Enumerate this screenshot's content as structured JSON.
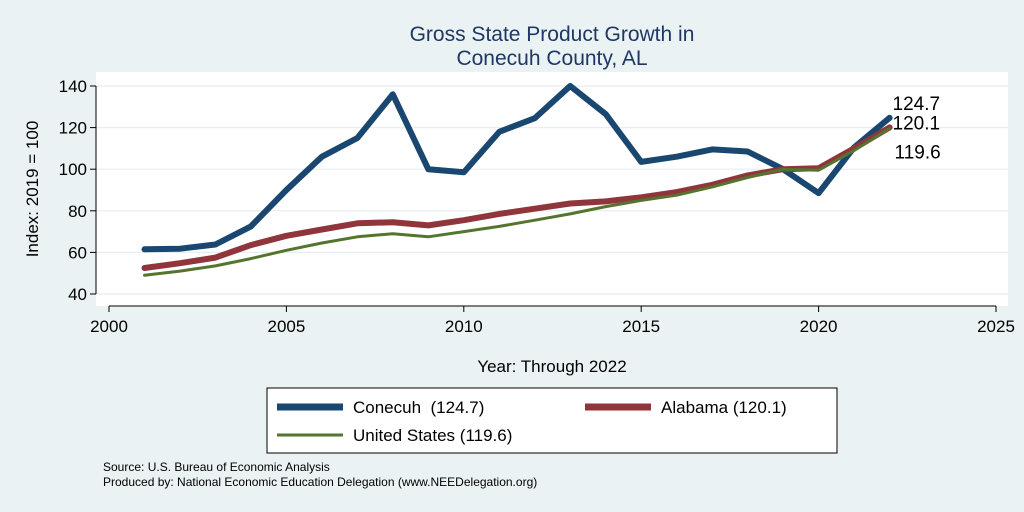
{
  "chart_data": {
    "type": "line",
    "title": "Gross State Product Growth in",
    "subtitle": "Conecuh County, AL",
    "xlabel": "Year: Through 2022",
    "ylabel": "Index: 2019 = 100",
    "xlim": [
      2000,
      2025
    ],
    "ylim": [
      40,
      140
    ],
    "xticks": [
      2000,
      2005,
      2010,
      2015,
      2020,
      2025
    ],
    "yticks": [
      40,
      60,
      80,
      100,
      120,
      140
    ],
    "grid": true,
    "x": [
      2001,
      2002,
      2003,
      2004,
      2005,
      2006,
      2007,
      2008,
      2009,
      2010,
      2011,
      2012,
      2013,
      2014,
      2015,
      2016,
      2017,
      2018,
      2019,
      2020,
      2021,
      2022
    ],
    "series": [
      {
        "name": "Conecuh",
        "color": "#1a476f",
        "end_label": "124.7",
        "legend_label": "Conecuh  (124.7)",
        "values": [
          61.5,
          61.8,
          63.8,
          72.5,
          90,
          106,
          115,
          136,
          100,
          98.5,
          118,
          124.5,
          140,
          126.5,
          103.5,
          106,
          109.5,
          108.5,
          100,
          88.5,
          110.5,
          124.7
        ]
      },
      {
        "name": "Alabama",
        "color": "#90353b",
        "end_label": "120.1",
        "legend_label": "Alabama (120.1)",
        "values": [
          52.5,
          54.8,
          57.5,
          63.5,
          68,
          71,
          74,
          74.5,
          73,
          75.5,
          78.5,
          81,
          83.5,
          84.5,
          86.5,
          89,
          92.5,
          97,
          100,
          100.5,
          110,
          120.1
        ]
      },
      {
        "name": "United States",
        "color": "#55752f",
        "end_label": "119.6",
        "legend_label": "United States (119.6)",
        "values": [
          49,
          51,
          53.5,
          57,
          61,
          64.5,
          67.5,
          69,
          67.5,
          70,
          72.5,
          75.5,
          78.5,
          82,
          85,
          87.5,
          91.5,
          96,
          100,
          99.5,
          109,
          119.6
        ]
      }
    ],
    "legend_position": "bottom"
  },
  "footer": {
    "source": "Source: U.S. Bureau of Economic Analysis",
    "producer": "Produced by: National Economic Education Delegation (www.NEEDelegation.org)"
  }
}
